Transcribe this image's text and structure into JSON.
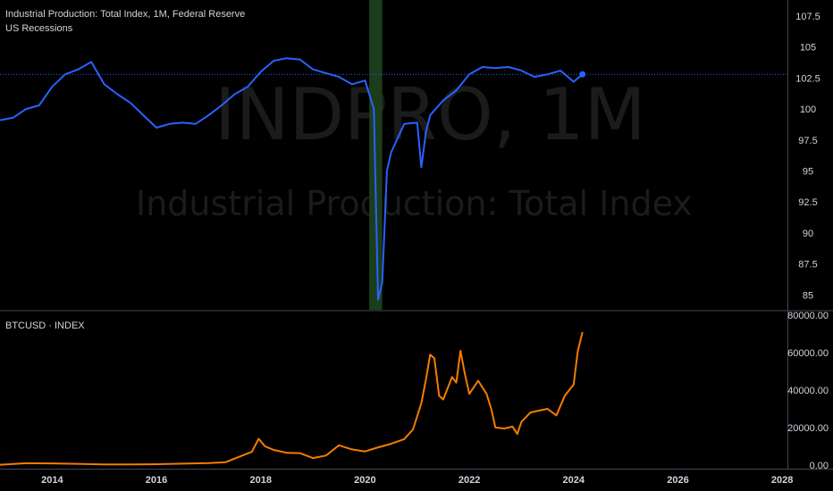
{
  "header": {
    "title": "Industrial Production: Total Index, 1M, Federal Reserve",
    "recession_label": "US Recessions",
    "btc_label": "BTCUSD · INDEX"
  },
  "watermark": {
    "symbol": "INDPRO, 1M",
    "name": "Industrial Production: Total Index"
  },
  "colors": {
    "background": "#000000",
    "indpro_line": "#2962ff",
    "btc_line": "#f57c00",
    "recession_band": "#1b3d1b",
    "last_value_line": "#2962ff"
  },
  "x_axis": {
    "tick_labels": [
      "2014",
      "2016",
      "2018",
      "2020",
      "2022",
      "2024",
      "2026",
      "2028"
    ]
  },
  "chart_data": [
    {
      "type": "line",
      "series": [
        {
          "name": "Industrial Production: Total Index",
          "x": [
            2013.0,
            2013.25,
            2013.5,
            2013.75,
            2014.0,
            2014.25,
            2014.5,
            2014.75,
            2015.0,
            2015.25,
            2015.5,
            2015.75,
            2016.0,
            2016.25,
            2016.5,
            2016.75,
            2017.0,
            2017.25,
            2017.5,
            2017.75,
            2018.0,
            2018.25,
            2018.5,
            2018.75,
            2019.0,
            2019.25,
            2019.5,
            2019.75,
            2020.0,
            2020.17,
            2020.25,
            2020.33,
            2020.42,
            2020.5,
            2020.75,
            2021.0,
            2021.08,
            2021.17,
            2021.25,
            2021.5,
            2021.75,
            2022.0,
            2022.25,
            2022.5,
            2022.75,
            2023.0,
            2023.25,
            2023.5,
            2023.75,
            2024.0,
            2024.17
          ],
          "values": [
            99.1,
            99.3,
            100.0,
            100.3,
            101.8,
            102.8,
            103.2,
            103.8,
            102.0,
            101.2,
            100.5,
            99.5,
            98.5,
            98.8,
            98.9,
            98.8,
            99.5,
            100.3,
            101.2,
            101.8,
            103.0,
            103.9,
            104.1,
            104.0,
            103.2,
            102.9,
            102.6,
            102.0,
            102.3,
            100.0,
            84.6,
            86.0,
            95.0,
            96.5,
            98.8,
            98.9,
            95.3,
            98.2,
            99.5,
            100.7,
            101.5,
            102.8,
            103.4,
            103.3,
            103.4,
            103.1,
            102.6,
            102.8,
            103.1,
            102.2,
            102.8
          ]
        }
      ],
      "recession_band": [
        2020.08,
        2020.33
      ],
      "last_value": 102.8,
      "y_tick_labels": [
        "85",
        "87.5",
        "90",
        "92.5",
        "95",
        "97.5",
        "100",
        "102.5",
        "105",
        "107.5"
      ],
      "ylim": [
        83.8,
        108.8
      ],
      "xlim": [
        2013.0,
        2028.1
      ]
    },
    {
      "type": "line",
      "series": [
        {
          "name": "BTCUSD",
          "x": [
            2013.0,
            2013.5,
            2014.0,
            2014.5,
            2015.0,
            2015.5,
            2016.0,
            2016.5,
            2017.0,
            2017.33,
            2017.58,
            2017.83,
            2017.96,
            2018.08,
            2018.25,
            2018.5,
            2018.75,
            2019.0,
            2019.25,
            2019.5,
            2019.75,
            2020.0,
            2020.2,
            2020.5,
            2020.75,
            2020.92,
            2021.08,
            2021.17,
            2021.25,
            2021.33,
            2021.42,
            2021.5,
            2021.67,
            2021.75,
            2021.83,
            2021.92,
            2022.0,
            2022.17,
            2022.33,
            2022.42,
            2022.5,
            2022.67,
            2022.83,
            2022.92,
            2023.0,
            2023.17,
            2023.33,
            2023.5,
            2023.67,
            2023.83,
            2024.0,
            2024.08,
            2024.17
          ],
          "values": [
            100,
            900,
            800,
            600,
            300,
            250,
            400,
            650,
            950,
            1500,
            4300,
            7000,
            14000,
            10000,
            8000,
            6500,
            6300,
            3700,
            5000,
            10500,
            8300,
            7200,
            9000,
            11300,
            13800,
            19000,
            33000,
            46000,
            59000,
            57000,
            37000,
            35000,
            47000,
            44000,
            61000,
            48000,
            38000,
            45000,
            38000,
            30000,
            20000,
            19500,
            20500,
            16500,
            23000,
            28000,
            29000,
            30000,
            26500,
            37000,
            43000,
            61000,
            71000
          ]
        }
      ],
      "y_tick_labels": [
        "0.00",
        "20000.00",
        "40000.00",
        "60000.00",
        "80000.00"
      ],
      "ylim": [
        -2000,
        82000
      ],
      "xlim": [
        2013.0,
        2028.1
      ]
    }
  ]
}
